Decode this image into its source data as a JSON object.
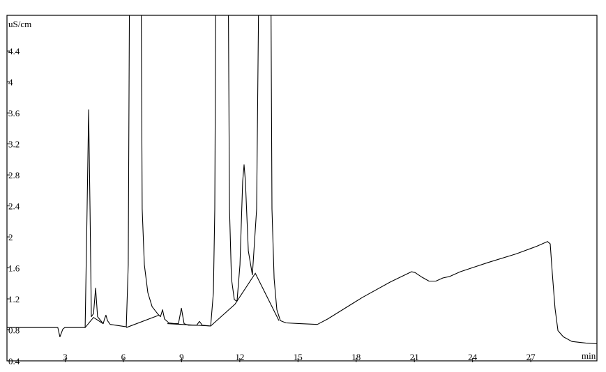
{
  "chart_data": {
    "type": "line",
    "title": "",
    "xlabel": "min",
    "ylabel": "uS/cm",
    "xlim": [
      0,
      30.41
    ],
    "ylim": [
      0.4,
      4.86
    ],
    "grid": false,
    "x_ticks": [
      "3",
      "6",
      "9",
      "12",
      "15",
      "18",
      "21",
      "24",
      "27"
    ],
    "x_tick_values": [
      3,
      6,
      9,
      12,
      15,
      18,
      21,
      24,
      27
    ],
    "y_ticks": [
      "0.4",
      "0.8",
      "1.2",
      "1.6",
      "2",
      "2.4",
      "2.8",
      "3.2",
      "3.6",
      "4",
      "4.4"
    ],
    "y_tick_values": [
      0.4,
      0.8,
      1.2,
      1.6,
      2.0,
      2.4,
      2.8,
      3.2,
      3.6,
      4.0,
      4.4
    ],
    "colors": {
      "trace": "#000000",
      "frame": "#000000"
    },
    "series": [
      {
        "points": [
          [
            0,
            0.83
          ],
          [
            2.62,
            0.83
          ],
          [
            2.73,
            0.71
          ],
          [
            2.88,
            0.81
          ],
          [
            2.98,
            0.83
          ],
          [
            4.03,
            0.83
          ],
          [
            4.13,
            2.36
          ],
          [
            4.21,
            3.64
          ],
          [
            4.28,
            2.36
          ],
          [
            4.35,
            0.97
          ],
          [
            4.46,
            1.01
          ],
          [
            4.57,
            1.34
          ],
          [
            4.67,
            0.97
          ],
          [
            4.96,
            0.88
          ],
          [
            5.03,
            0.94
          ],
          [
            5.1,
            0.99
          ],
          [
            5.18,
            0.92
          ],
          [
            5.32,
            0.87
          ],
          [
            6.15,
            0.84
          ],
          [
            6.25,
            1.64
          ],
          [
            6.33,
            6
          ],
          [
            6.9,
            6
          ],
          [
            6.97,
            2.36
          ],
          [
            7.08,
            1.64
          ],
          [
            7.26,
            1.28
          ],
          [
            7.48,
            1.1
          ],
          [
            7.76,
            1.01
          ],
          [
            7.91,
            0.97
          ],
          [
            8.02,
            1.06
          ],
          [
            8.12,
            0.94
          ],
          [
            8.34,
            0.89
          ],
          [
            8.63,
            0.88
          ],
          [
            8.84,
            0.88
          ],
          [
            8.99,
            1.08
          ],
          [
            9.13,
            0.88
          ],
          [
            9.35,
            0.86
          ],
          [
            9.78,
            0.86
          ],
          [
            9.92,
            0.91
          ],
          [
            10.07,
            0.86
          ],
          [
            10.5,
            0.85
          ],
          [
            10.64,
            1.28
          ],
          [
            10.71,
            2.36
          ],
          [
            10.78,
            6
          ],
          [
            11.39,
            6
          ],
          [
            11.47,
            2.36
          ],
          [
            11.57,
            1.46
          ],
          [
            11.72,
            1.19
          ],
          [
            11.86,
            1.17
          ],
          [
            12.01,
            1.64
          ],
          [
            12.15,
            2.72
          ],
          [
            12.22,
            2.93
          ],
          [
            12.29,
            2.72
          ],
          [
            12.44,
            1.82
          ],
          [
            12.65,
            1.51
          ],
          [
            12.87,
            2.36
          ],
          [
            13.01,
            6
          ],
          [
            13.59,
            6
          ],
          [
            13.66,
            2.36
          ],
          [
            13.77,
            1.46
          ],
          [
            13.91,
            1.06
          ],
          [
            14.09,
            0.92
          ],
          [
            14.38,
            0.89
          ],
          [
            15.1,
            0.88
          ],
          [
            16.0,
            0.87
          ],
          [
            16.53,
            0.94
          ],
          [
            18.33,
            1.22
          ],
          [
            19.77,
            1.42
          ],
          [
            20.85,
            1.55
          ],
          [
            21.03,
            1.54
          ],
          [
            21.39,
            1.48
          ],
          [
            21.75,
            1.43
          ],
          [
            22.11,
            1.43
          ],
          [
            22.47,
            1.47
          ],
          [
            22.83,
            1.49
          ],
          [
            23.36,
            1.55
          ],
          [
            24.8,
            1.67
          ],
          [
            26.24,
            1.78
          ],
          [
            27.32,
            1.88
          ],
          [
            27.86,
            1.94
          ],
          [
            28.0,
            1.91
          ],
          [
            28.11,
            1.53
          ],
          [
            28.25,
            1.08
          ],
          [
            28.4,
            0.79
          ],
          [
            28.68,
            0.71
          ],
          [
            29.12,
            0.65
          ],
          [
            29.83,
            0.63
          ],
          [
            30.41,
            0.62
          ]
        ]
      }
    ],
    "baselines": [
      [
        [
          4.03,
          0.83
        ],
        [
          4.46,
          0.96
        ],
        [
          4.96,
          0.88
        ]
      ],
      [
        [
          6.15,
          0.83
        ],
        [
          7.84,
          0.99
        ]
      ],
      [
        [
          8.27,
          0.88
        ],
        [
          10.5,
          0.85
        ]
      ],
      [
        [
          10.5,
          0.85
        ],
        [
          11.75,
          1.13
        ],
        [
          12.8,
          1.53
        ],
        [
          14.02,
          0.92
        ]
      ]
    ]
  }
}
